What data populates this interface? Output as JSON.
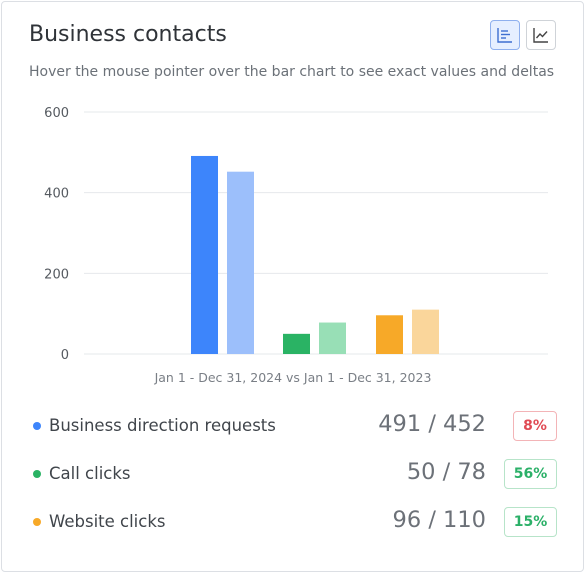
{
  "header": {
    "title": "Business contacts",
    "subtitle": "Hover the mouse pointer over the bar chart to see exact values and deltas"
  },
  "toggles": [
    {
      "icon": "bar-chart-icon",
      "active": true
    },
    {
      "icon": "line-chart-icon",
      "active": false
    }
  ],
  "chart_data": {
    "type": "bar",
    "xlabel": "Jan 1 - Dec 31, 2024 vs Jan 1 - Dec 31, 2023",
    "ylim": [
      0,
      600
    ],
    "yticks": [
      "600",
      "400",
      "200",
      "0"
    ],
    "grid": true,
    "groups": [
      {
        "name": "Business direction requests",
        "current": 452,
        "previous": 491,
        "color_current": "#3d85fb",
        "color_previous": "#9cbffb"
      },
      {
        "name": "Call clicks",
        "current": 78,
        "previous": 50,
        "color_current": "#2ab364",
        "color_previous": "#98dfb6"
      },
      {
        "name": "Website clicks",
        "current": 110,
        "previous": 96,
        "color_current": "#f7a928",
        "color_previous": "#fad69b"
      }
    ]
  },
  "metrics": [
    {
      "label": "Business direction requests",
      "value": "491 / 452",
      "delta": "8%",
      "color": "#3d85fb",
      "trend": "negative"
    },
    {
      "label": "Call clicks",
      "value": "50 / 78",
      "delta": "56%",
      "color": "#2ab364",
      "trend": "positive"
    },
    {
      "label": "Website clicks",
      "value": "96 / 110",
      "delta": "15%",
      "color": "#f7a928",
      "trend": "positive"
    }
  ]
}
